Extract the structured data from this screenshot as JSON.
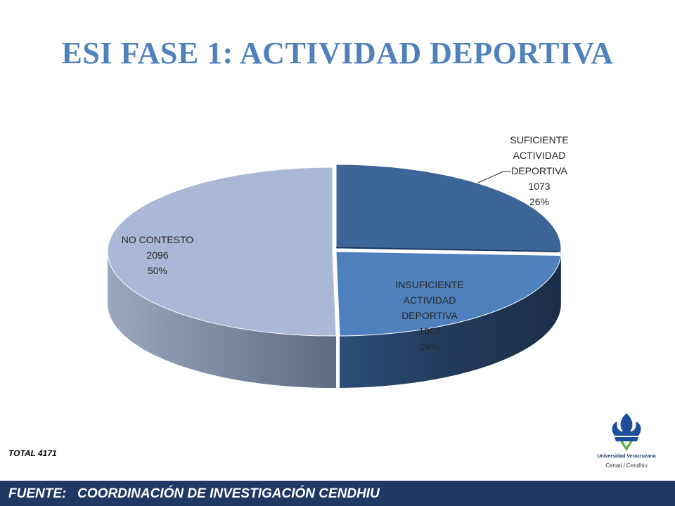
{
  "title": "ESI FASE 1: ACTIVIDAD DEPORTIVA",
  "total_label": "TOTAL 4171",
  "footer": {
    "label": "FUENTE:",
    "source": "COORDINACIÓN DE INVESTIGACIÓN CENDHIU"
  },
  "logo": {
    "institution": "Universidad Veracruzana",
    "department": "Cenati / Cendhiu",
    "colors": {
      "primary": "#1f4e9e",
      "accent": "#5fb14a"
    }
  },
  "chart_data": {
    "type": "pie",
    "style": "3d",
    "total": 4171,
    "slices": [
      {
        "name": "SUFICIENTE ACTIVIDAD DEPORTIVA",
        "value": 1073,
        "percent": "26%",
        "color": "#3c6698",
        "label_lines": [
          "SUFICIENTE",
          "ACTIVIDAD",
          "DEPORTIVA",
          "1073",
          "26%"
        ]
      },
      {
        "name": "INSUFICIENTE ACTIVIDAD DEPORTIVA",
        "value": 1002,
        "percent": "24%",
        "color": "#4e80bd",
        "label_lines": [
          "INSUFICIENTE",
          "ACTIVIDAD",
          "DEPORTIVA",
          "1002",
          "24%"
        ]
      },
      {
        "name": "NO CONTESTO",
        "value": 2096,
        "percent": "50%",
        "color": "#a8b8d6",
        "label_lines": [
          "NO CONTESTO",
          "2096",
          "50%"
        ]
      }
    ]
  }
}
